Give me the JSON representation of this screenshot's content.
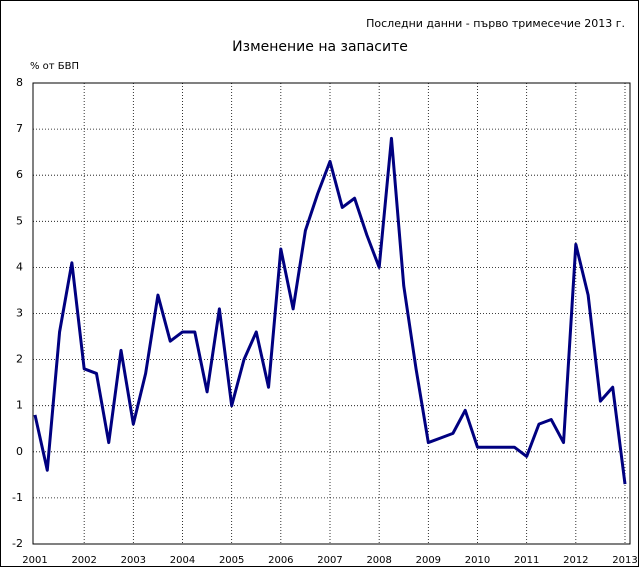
{
  "chart_data": {
    "type": "line",
    "title": "Изменение на запасите",
    "subtitle": "Последни данни - първо тримесечие 2013 г.",
    "y_label": "% от БВП",
    "categories": [
      "2001",
      null,
      null,
      null,
      "2002",
      null,
      null,
      null,
      "2003",
      null,
      null,
      null,
      "2004",
      null,
      null,
      null,
      "2005",
      null,
      null,
      null,
      "2006",
      null,
      null,
      null,
      "2007",
      null,
      null,
      null,
      "2008",
      null,
      null,
      null,
      "2009",
      null,
      null,
      null,
      "2010",
      null,
      null,
      null,
      "2011",
      null,
      null,
      null,
      "2012",
      null,
      null,
      null,
      "2013"
    ],
    "series": [
      {
        "name": "Изменение на запасите",
        "color": "#000080",
        "values": [
          0.8,
          -0.4,
          2.6,
          4.1,
          1.8,
          1.7,
          0.2,
          2.2,
          0.6,
          1.7,
          3.4,
          2.4,
          2.6,
          2.6,
          1.3,
          3.1,
          1.0,
          2.0,
          2.6,
          1.4,
          4.4,
          3.1,
          4.8,
          5.6,
          6.3,
          5.3,
          5.5,
          4.7,
          4.0,
          6.8,
          3.6,
          1.8,
          0.2,
          0.3,
          0.4,
          0.9,
          0.1,
          0.1,
          0.1,
          0.1,
          -0.1,
          0.6,
          0.7,
          0.2,
          4.5,
          3.4,
          1.1,
          1.4,
          -0.7
        ]
      }
    ],
    "ylim": [
      -2,
      8
    ],
    "yticks": [
      -2,
      -1,
      0,
      1,
      2,
      3,
      4,
      5,
      6,
      7,
      8
    ],
    "grid": true
  }
}
